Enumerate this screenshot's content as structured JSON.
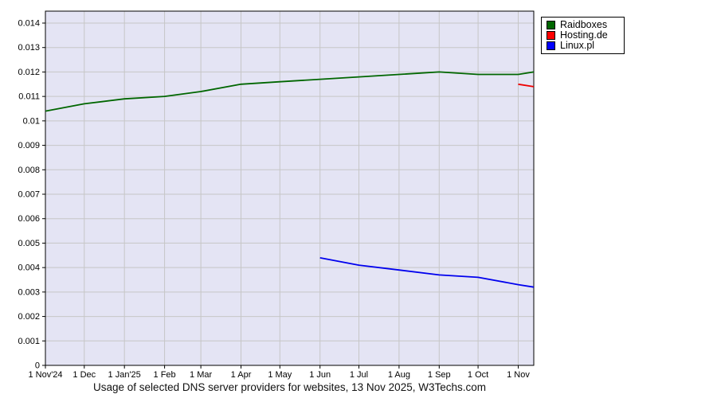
{
  "chart_data": {
    "type": "line",
    "title": "Usage of selected DNS server providers for websites, 13 Nov 2025, W3Techs.com",
    "plot_bg": "#e4e4f4",
    "grid_color": "#c6c6c6",
    "axis_color": "#000000",
    "legend_position": "top-right-outside",
    "x_axis": {
      "max_day": 377,
      "ticks": [
        {
          "day": 0,
          "label": "1 Nov'24"
        },
        {
          "day": 30,
          "label": "1 Dec"
        },
        {
          "day": 61,
          "label": "1 Jan'25"
        },
        {
          "day": 92,
          "label": "1 Feb"
        },
        {
          "day": 120,
          "label": "1 Mar"
        },
        {
          "day": 151,
          "label": "1 Apr"
        },
        {
          "day": 181,
          "label": "1 May"
        },
        {
          "day": 212,
          "label": "1 Jun"
        },
        {
          "day": 242,
          "label": "1 Jul"
        },
        {
          "day": 273,
          "label": "1 Aug"
        },
        {
          "day": 304,
          "label": "1 Sep"
        },
        {
          "day": 334,
          "label": "1 Oct"
        },
        {
          "day": 365,
          "label": "1 Nov"
        }
      ]
    },
    "y_axis": {
      "range": [
        0,
        0.0145
      ],
      "ticks": [
        0,
        0.001,
        0.002,
        0.003,
        0.004,
        0.005,
        0.006,
        0.007,
        0.008,
        0.009,
        0.01,
        0.011,
        0.012,
        0.013,
        0.014
      ],
      "labels": [
        "0",
        "0.001",
        "0.002",
        "0.003",
        "0.004",
        "0.005",
        "0.006",
        "0.007",
        "0.008",
        "0.009",
        "0.01",
        "0.011",
        "0.012",
        "0.013",
        "0.014"
      ]
    },
    "series": [
      {
        "name": "Raidboxes",
        "color": "#006600",
        "points": [
          [
            0,
            0.0104
          ],
          [
            30,
            0.0107
          ],
          [
            61,
            0.0109
          ],
          [
            92,
            0.011
          ],
          [
            120,
            0.0112
          ],
          [
            151,
            0.0115
          ],
          [
            181,
            0.0116
          ],
          [
            212,
            0.0117
          ],
          [
            242,
            0.0118
          ],
          [
            273,
            0.0119
          ],
          [
            304,
            0.012
          ],
          [
            334,
            0.0119
          ],
          [
            365,
            0.0119
          ],
          [
            377,
            0.012
          ]
        ]
      },
      {
        "name": "Hosting.de",
        "color": "#ee0000",
        "points": [
          [
            365,
            0.0115
          ],
          [
            377,
            0.0114
          ]
        ]
      },
      {
        "name": "Linux.pl",
        "color": "#0000ee",
        "points": [
          [
            212,
            0.0044
          ],
          [
            242,
            0.0041
          ],
          [
            273,
            0.0039
          ],
          [
            304,
            0.0037
          ],
          [
            334,
            0.0036
          ],
          [
            365,
            0.0033
          ],
          [
            377,
            0.0032
          ]
        ]
      }
    ]
  },
  "legend": [
    {
      "label": "Raidboxes",
      "color": "#006600"
    },
    {
      "label": "Hosting.de",
      "color": "#ff0000"
    },
    {
      "label": "Linux.pl",
      "color": "#0000ff"
    }
  ]
}
